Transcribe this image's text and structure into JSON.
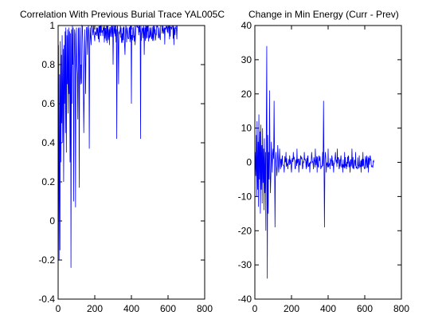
{
  "chart_data": [
    {
      "type": "line",
      "title": "Correlation With Previous Burial Trace YAL005C",
      "xlabel": "",
      "ylabel": "",
      "xlim": [
        0,
        800
      ],
      "ylim": [
        -0.4,
        1
      ],
      "xticks": [
        0,
        200,
        400,
        600,
        800
      ],
      "yticks": [
        -0.4,
        -0.2,
        0,
        0.2,
        0.4,
        0.6,
        0.8,
        1
      ],
      "grid": false,
      "series": [
        {
          "color": "#0000ff",
          "x_range": [
            1,
            650
          ],
          "x": [
            2,
            5,
            8,
            10,
            12,
            15,
            18,
            20,
            22,
            25,
            28,
            30,
            33,
            35,
            38,
            40,
            42,
            45,
            48,
            50,
            52,
            55,
            58,
            60,
            62,
            65,
            68,
            70,
            73,
            75,
            78,
            80,
            85,
            90,
            95,
            100,
            105,
            110,
            115,
            120,
            125,
            130,
            135,
            140,
            145,
            150,
            155,
            160,
            165,
            170,
            175,
            180,
            185,
            190,
            200,
            210,
            220,
            230,
            240,
            250,
            260,
            270,
            280,
            290,
            300,
            310,
            320,
            325,
            330,
            340,
            350,
            360,
            365,
            370,
            380,
            390,
            400,
            410,
            420,
            430,
            440,
            450,
            460,
            470,
            480,
            490,
            500,
            510,
            520,
            530,
            540,
            550,
            560,
            570,
            580,
            590,
            600,
            610,
            620,
            630,
            640,
            650
          ],
          "y": [
            0.9,
            -0.2,
            0.75,
            -0.15,
            0.92,
            0.3,
            0.85,
            0.5,
            0.95,
            0.4,
            0.88,
            0.2,
            0.9,
            0.6,
            0.97,
            0.45,
            0.99,
            0.35,
            0.95,
            0.7,
            0.98,
            0.55,
            0.99,
            0.65,
            0.97,
            0.3,
            0.96,
            -0.24,
            0.98,
            0.6,
            1,
            0.8,
            0.1,
            0.98,
            0.07,
            0.99,
            0.75,
            0.98,
            0.17,
            0.99,
            0.8,
            1,
            0.9,
            0.45,
            0.98,
            0.65,
            0.99,
            0.85,
            1,
            0.37,
            0.99,
            0.9,
            1,
            0.95,
            0.92,
            0.99,
            0.93,
            1,
            0.97,
            0.99,
            0.96,
            1,
            0.9,
            0.99,
            0.8,
            1,
            0.42,
            0.99,
            0.7,
            1,
            0.96,
            0.99,
            0.85,
            1,
            0.95,
            0.99,
            0.6,
            0.99,
            0.9,
            1,
            0.95,
            0.42,
            0.99,
            0.85,
            1,
            0.97,
            0.99,
            0.93,
            1,
            0.98,
            0.99,
            0.94,
            1,
            0.97,
            0.99,
            1,
            0.96,
            1,
            0.98,
            1,
            0.99,
            1
          ]
        }
      ]
    },
    {
      "type": "line",
      "title": "Change in Min Energy (Curr - Prev)",
      "xlabel": "",
      "ylabel": "",
      "xlim": [
        0,
        800
      ],
      "ylim": [
        -40,
        40
      ],
      "xticks": [
        0,
        200,
        400,
        600,
        800
      ],
      "yticks": [
        -40,
        -30,
        -20,
        -10,
        0,
        10,
        20,
        30,
        40
      ],
      "grid": false,
      "series": [
        {
          "color": "#0000ff",
          "x_range": [
            1,
            650
          ],
          "x": [
            2,
            5,
            8,
            10,
            12,
            15,
            18,
            20,
            22,
            25,
            28,
            30,
            33,
            35,
            38,
            40,
            42,
            45,
            48,
            50,
            52,
            55,
            58,
            60,
            62,
            65,
            68,
            70,
            73,
            75,
            78,
            80,
            85,
            90,
            95,
            100,
            105,
            110,
            115,
            120,
            125,
            130,
            135,
            140,
            150,
            160,
            170,
            180,
            190,
            200,
            210,
            220,
            230,
            240,
            250,
            260,
            270,
            280,
            290,
            300,
            310,
            320,
            330,
            340,
            350,
            360,
            370,
            375,
            380,
            385,
            390,
            400,
            410,
            420,
            430,
            440,
            450,
            460,
            470,
            480,
            490,
            500,
            510,
            520,
            530,
            540,
            550,
            560,
            570,
            580,
            590,
            600,
            610,
            620,
            630,
            640,
            650
          ],
          "y": [
            3,
            -4,
            8,
            -10,
            12,
            -8,
            6,
            -13,
            14,
            -5,
            9,
            -15,
            11,
            -8,
            5,
            -12,
            10,
            -6,
            4,
            -14,
            7,
            -9,
            3,
            -20,
            5,
            34,
            -34,
            8,
            -15,
            3,
            -5,
            21,
            -9,
            6,
            -3,
            4,
            18,
            -19,
            3,
            -4,
            5,
            -3,
            4,
            -2,
            2,
            -3,
            3,
            -2,
            2,
            -3,
            3,
            -2,
            4,
            -3,
            2,
            -2,
            3,
            -2,
            2,
            -3,
            3,
            -2,
            4,
            -3,
            2,
            -2,
            3,
            18,
            -19,
            3,
            -3,
            4,
            -2,
            2,
            -3,
            3,
            4,
            -2,
            2,
            -3,
            3,
            -2,
            2,
            -3,
            4,
            -2,
            3,
            -2,
            2,
            -3,
            3,
            -2,
            2,
            -3,
            2,
            -1,
            0
          ]
        }
      ]
    }
  ]
}
